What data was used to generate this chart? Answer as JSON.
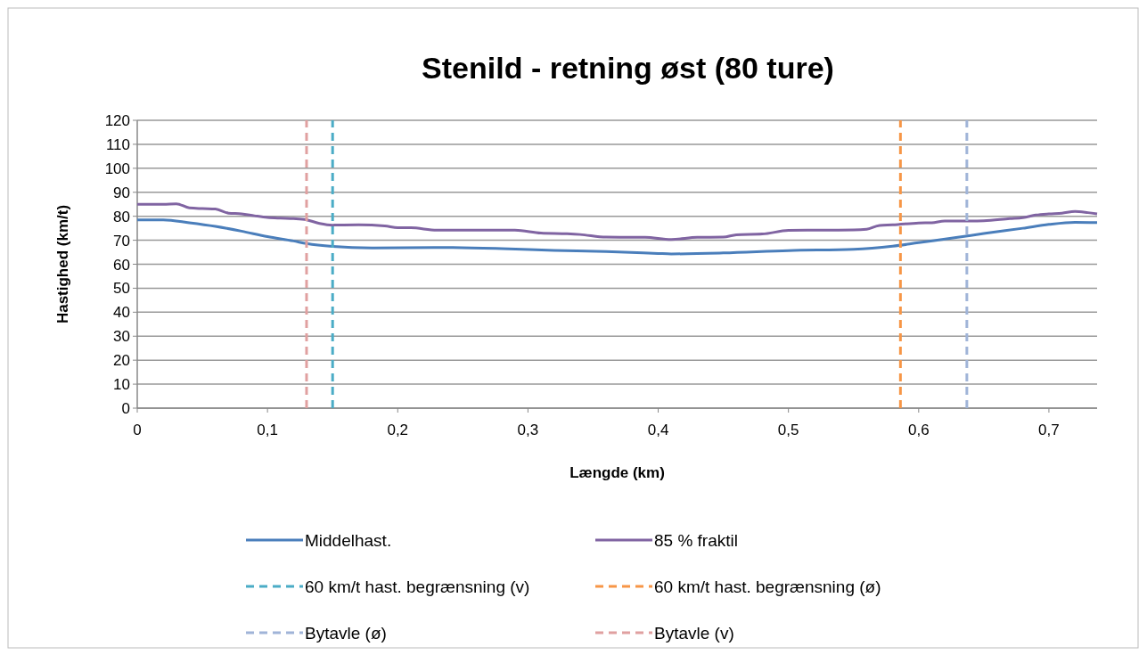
{
  "chart_data": {
    "type": "line",
    "title": "Stenild - retning øst (80 ture)",
    "xlabel": "Længde (km)",
    "ylabel": "Hastighed (km/t)",
    "xlim": [
      0,
      0.737
    ],
    "xticks": [
      0,
      {
        "value": 0.1,
        "label": "0,1"
      },
      {
        "value": 0.2,
        "label": "0,2"
      },
      {
        "value": 0.3,
        "label": "0,3"
      },
      {
        "value": 0.4,
        "label": "0,4"
      },
      {
        "value": 0.5,
        "label": "0,5"
      },
      {
        "value": 0.6,
        "label": "0,6"
      },
      {
        "value": 0.7,
        "label": "0,7"
      }
    ],
    "ylim": [
      0,
      120
    ],
    "yticks": [
      0,
      10,
      20,
      30,
      40,
      50,
      60,
      70,
      80,
      90,
      100,
      110,
      120
    ],
    "grid": "y",
    "legend": "bottom",
    "marker": "none",
    "series": [
      {
        "name": "Middelhast.",
        "color": "#4a7ebb",
        "line_style": "solid",
        "x": [
          0,
          0.02,
          0.04,
          0.06,
          0.08,
          0.1,
          0.12,
          0.13,
          0.15,
          0.18,
          0.23,
          0.28,
          0.32,
          0.36,
          0.4,
          0.41,
          0.45,
          0.5,
          0.55,
          0.58,
          0.6,
          0.63,
          0.65,
          0.68,
          0.7,
          0.72,
          0.737
        ],
        "values": [
          78.5,
          78.5,
          77.3,
          75.8,
          73.8,
          71.5,
          69.7,
          68.6,
          67.4,
          66.8,
          67,
          66.5,
          65.8,
          65.3,
          64.5,
          64.3,
          64.7,
          65.7,
          66.2,
          67.5,
          69,
          71.2,
          72.8,
          75,
          76.6,
          77.5,
          77.4
        ]
      },
      {
        "name": "85 % fraktil",
        "color": "#8064a2",
        "line_style": "solid",
        "x": [
          0,
          0.02,
          0.03,
          0.04,
          0.05,
          0.06,
          0.07,
          0.08,
          0.09,
          0.1,
          0.11,
          0.12,
          0.13,
          0.14,
          0.15,
          0.17,
          0.19,
          0.2,
          0.21,
          0.23,
          0.26,
          0.29,
          0.31,
          0.33,
          0.34,
          0.36,
          0.39,
          0.41,
          0.43,
          0.45,
          0.46,
          0.48,
          0.5,
          0.52,
          0.55,
          0.56,
          0.57,
          0.58,
          0.6,
          0.61,
          0.62,
          0.64,
          0.65,
          0.67,
          0.68,
          0.69,
          0.7,
          0.71,
          0.72,
          0.73,
          0.737
        ],
        "values": [
          85,
          85,
          85.2,
          83.5,
          83.2,
          83,
          81.3,
          81,
          80.2,
          79.5,
          79.2,
          79,
          78.5,
          77,
          76.3,
          76.4,
          76,
          75.2,
          75.2,
          74.2,
          74.2,
          74.2,
          73,
          72.7,
          72.4,
          71.3,
          71.2,
          70.3,
          71.2,
          71.3,
          72.3,
          72.6,
          74.1,
          74.2,
          74.3,
          74.6,
          76.2,
          76.4,
          77.2,
          77.3,
          78,
          78,
          78.1,
          79,
          79.4,
          80.5,
          81,
          81.3,
          82,
          81.5,
          81
        ]
      },
      {
        "name": "60 km/t hast. begrænsning (v)",
        "color": "#4bacc6",
        "line_style": "dashed",
        "x": [
          0.15,
          0.15
        ],
        "values": [
          0,
          120
        ]
      },
      {
        "name": "60 km/t hast. begrænsning (ø)",
        "color": "#f79646",
        "line_style": "dashed",
        "x": [
          0.586,
          0.586
        ],
        "values": [
          0,
          120
        ]
      },
      {
        "name": "Bytavle (ø)",
        "color": "#a0b4d8",
        "line_style": "dashed",
        "x": [
          0.637,
          0.637
        ],
        "values": [
          0,
          120
        ]
      },
      {
        "name": "Bytavle (v)",
        "color": "#e0a0a0",
        "line_style": "dashed",
        "x": [
          0.13,
          0.13
        ],
        "values": [
          0,
          120
        ]
      }
    ]
  }
}
